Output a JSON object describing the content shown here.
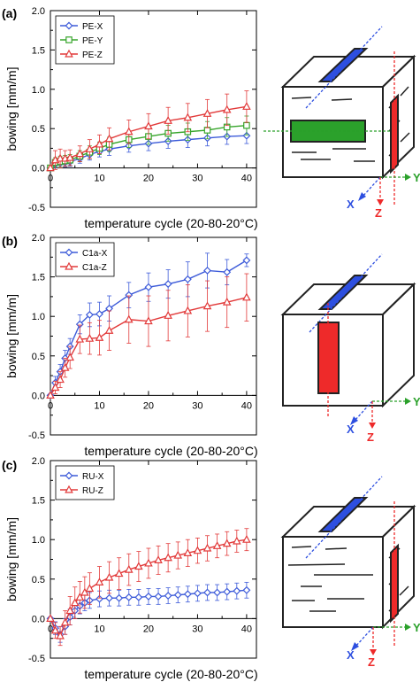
{
  "colors": {
    "blue": "#3d5bd9",
    "green": "#37a52b",
    "red": "#e23a3a",
    "axis": "#000000",
    "cube_line": "#222222",
    "specimen_blue": "#2d4fe0",
    "specimen_red": "#ee2a2a",
    "specimen_green": "#2ba12b"
  },
  "axes_labels": {
    "x": "X",
    "y": "Y",
    "z": "Z"
  },
  "chart_data": [
    {
      "type": "line",
      "panel_label": "(a)",
      "xlabel": "temperature cycle (20-80-20°C)",
      "ylabel": "bowing [mm/m]",
      "xlim": [
        0,
        42
      ],
      "ylim": [
        -0.5,
        2.0
      ],
      "xticks": [
        0,
        10,
        20,
        30,
        40
      ],
      "yticks": [
        -0.5,
        0.0,
        0.5,
        1.0,
        1.5,
        2.0
      ],
      "ytick_labels": [
        "-0.5",
        "0.0",
        "0.5",
        "1.0",
        "1.5",
        "2.0"
      ],
      "legend_position": "top-left",
      "series": [
        {
          "name": "PE-X",
          "color": "blue",
          "marker": "diamond",
          "x": [
            0,
            1,
            2,
            3,
            4,
            6,
            8,
            10,
            12,
            16,
            20,
            24,
            28,
            32,
            36,
            40
          ],
          "y": [
            0,
            0.05,
            0.06,
            0.07,
            0.08,
            0.12,
            0.17,
            0.21,
            0.24,
            0.28,
            0.31,
            0.34,
            0.36,
            0.38,
            0.4,
            0.41
          ],
          "err": [
            0,
            0.05,
            0.06,
            0.06,
            0.06,
            0.06,
            0.07,
            0.07,
            0.08,
            0.08,
            0.09,
            0.09,
            0.1,
            0.1,
            0.1,
            0.1
          ]
        },
        {
          "name": "PE-Y",
          "color": "green",
          "marker": "square",
          "x": [
            0,
            1,
            2,
            3,
            4,
            6,
            8,
            10,
            12,
            16,
            20,
            24,
            28,
            32,
            36,
            40
          ],
          "y": [
            0,
            0.07,
            0.08,
            0.09,
            0.1,
            0.15,
            0.2,
            0.25,
            0.3,
            0.36,
            0.4,
            0.44,
            0.46,
            0.48,
            0.52,
            0.54
          ],
          "err": [
            0,
            0.06,
            0.07,
            0.07,
            0.07,
            0.07,
            0.08,
            0.08,
            0.09,
            0.1,
            0.1,
            0.1,
            0.11,
            0.11,
            0.12,
            0.12
          ]
        },
        {
          "name": "PE-Z",
          "color": "red",
          "marker": "triangle",
          "x": [
            0,
            1,
            2,
            3,
            4,
            6,
            8,
            10,
            12,
            16,
            20,
            24,
            28,
            32,
            36,
            40
          ],
          "y": [
            0,
            0.1,
            0.12,
            0.12,
            0.13,
            0.18,
            0.24,
            0.3,
            0.37,
            0.46,
            0.53,
            0.6,
            0.64,
            0.69,
            0.74,
            0.78
          ],
          "err": [
            0,
            0.12,
            0.12,
            0.1,
            0.1,
            0.1,
            0.12,
            0.12,
            0.14,
            0.15,
            0.16,
            0.17,
            0.18,
            0.18,
            0.2,
            0.2
          ]
        }
      ]
    },
    {
      "type": "line",
      "panel_label": "(b)",
      "xlabel": "temperature cycle (20-80-20°C)",
      "ylabel": "bowing [mm/m]",
      "xlim": [
        0,
        42
      ],
      "ylim": [
        -0.5,
        2.0
      ],
      "xticks": [
        0,
        10,
        20,
        30,
        40
      ],
      "yticks": [
        -0.5,
        0.0,
        0.5,
        1.0,
        1.5,
        2.0
      ],
      "ytick_labels": [
        "-0.5",
        "0.0",
        "0.5",
        "1.0",
        "1.5",
        "2.0"
      ],
      "legend_position": "top-left",
      "series": [
        {
          "name": "C1a-X",
          "color": "blue",
          "marker": "diamond",
          "x": [
            0,
            1,
            2,
            3,
            4,
            6,
            8,
            10,
            12,
            16,
            20,
            24,
            28,
            32,
            36,
            40
          ],
          "y": [
            0,
            0.16,
            0.3,
            0.47,
            0.62,
            0.9,
            1.02,
            1.03,
            1.1,
            1.27,
            1.37,
            1.41,
            1.47,
            1.58,
            1.56,
            1.71
          ],
          "err": [
            0,
            0.08,
            0.09,
            0.1,
            0.1,
            0.12,
            0.15,
            0.15,
            0.16,
            0.16,
            0.18,
            0.18,
            0.22,
            0.22,
            0.16,
            0.08
          ]
        },
        {
          "name": "C1a-Z",
          "color": "red",
          "marker": "triangle",
          "x": [
            0,
            1,
            2,
            3,
            4,
            6,
            8,
            10,
            12,
            16,
            20,
            24,
            28,
            32,
            36,
            40
          ],
          "y": [
            0,
            0.1,
            0.2,
            0.35,
            0.48,
            0.71,
            0.72,
            0.73,
            0.82,
            0.96,
            0.94,
            1.01,
            1.07,
            1.13,
            1.18,
            1.24
          ],
          "err": [
            0,
            0.08,
            0.1,
            0.12,
            0.14,
            0.18,
            0.2,
            0.22,
            0.25,
            0.3,
            0.32,
            0.32,
            0.33,
            0.32,
            0.32,
            0.3
          ]
        }
      ]
    },
    {
      "type": "line",
      "panel_label": "(c)",
      "xlabel": "temperature cycle (20-80-20°C)",
      "ylabel": "bowing [mm/m]",
      "xlim": [
        0,
        42
      ],
      "ylim": [
        -0.5,
        2.0
      ],
      "xticks": [
        0,
        10,
        20,
        30,
        40
      ],
      "yticks": [
        -0.5,
        0.0,
        0.5,
        1.0,
        1.5,
        2.0
      ],
      "ytick_labels": [
        "-0.5",
        "0.0",
        "0.5",
        "1.0",
        "1.5",
        "2.0"
      ],
      "legend_position": "top-left",
      "series": [
        {
          "name": "RU-X",
          "color": "blue",
          "marker": "diamond",
          "x": [
            0,
            1,
            2,
            3,
            4,
            5,
            6,
            7,
            8,
            10,
            12,
            14,
            16,
            18,
            20,
            22,
            24,
            26,
            28,
            30,
            32,
            34,
            36,
            38,
            40
          ],
          "y": [
            0,
            -0.12,
            -0.2,
            -0.1,
            0.02,
            0.1,
            0.16,
            0.2,
            0.23,
            0.25,
            0.26,
            0.26,
            0.27,
            0.27,
            0.28,
            0.28,
            0.29,
            0.3,
            0.31,
            0.32,
            0.33,
            0.33,
            0.34,
            0.35,
            0.36
          ],
          "err": [
            0,
            0.08,
            0.1,
            0.1,
            0.1,
            0.1,
            0.1,
            0.1,
            0.1,
            0.1,
            0.1,
            0.1,
            0.1,
            0.1,
            0.1,
            0.1,
            0.1,
            0.1,
            0.1,
            0.1,
            0.1,
            0.1,
            0.1,
            0.1,
            0.1
          ]
        },
        {
          "name": "RU-Z",
          "color": "red",
          "marker": "triangle",
          "x": [
            0,
            1,
            2,
            3,
            4,
            5,
            6,
            7,
            8,
            10,
            12,
            14,
            16,
            18,
            20,
            22,
            24,
            26,
            28,
            30,
            32,
            34,
            36,
            38,
            40
          ],
          "y": [
            0,
            -0.15,
            -0.22,
            -0.05,
            0.1,
            0.2,
            0.27,
            0.33,
            0.38,
            0.46,
            0.52,
            0.57,
            0.62,
            0.66,
            0.7,
            0.74,
            0.77,
            0.8,
            0.83,
            0.86,
            0.89,
            0.92,
            0.95,
            0.98,
            1.0
          ],
          "err": [
            0,
            0.1,
            0.12,
            0.15,
            0.18,
            0.2,
            0.2,
            0.2,
            0.2,
            0.2,
            0.2,
            0.2,
            0.2,
            0.19,
            0.19,
            0.18,
            0.18,
            0.17,
            0.17,
            0.16,
            0.16,
            0.15,
            0.15,
            0.14,
            0.14
          ]
        }
      ]
    }
  ]
}
